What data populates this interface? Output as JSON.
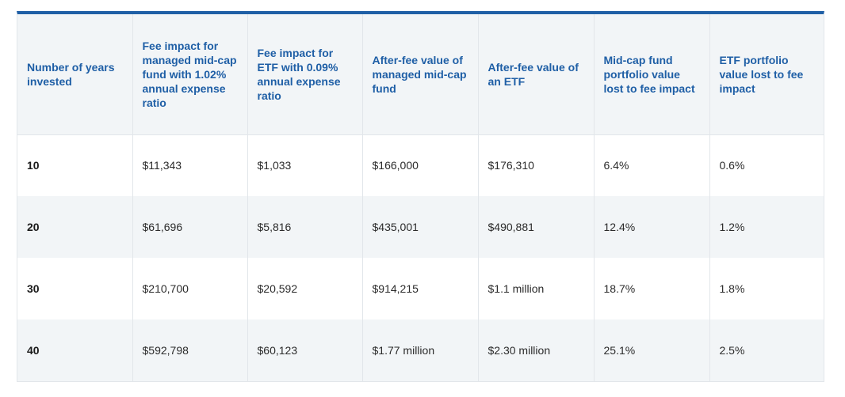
{
  "table": {
    "headers": [
      "Number of years invested",
      "Fee impact for managed mid-cap fund with 1.02% annual expense ratio",
      "Fee impact for ETF with 0.09% annual expense ratio",
      "After-fee value of managed mid-cap fund",
      "After-fee value of an ETF",
      "Mid-cap fund portfolio value lost to fee impact",
      "ETF portfolio value lost to fee impact"
    ],
    "rows": [
      [
        "10",
        "$11,343",
        "$1,033",
        "$166,000",
        "$176,310",
        "6.4%",
        "0.6%"
      ],
      [
        "20",
        "$61,696",
        "$5,816",
        "$435,001",
        "$490,881",
        "12.4%",
        "1.2%"
      ],
      [
        "30",
        "$210,700",
        "$20,592",
        "$914,215",
        "$1.1 million",
        "18.7%",
        "1.8%"
      ],
      [
        "40",
        "$592,798",
        "$60,123",
        "$1.77 million",
        "$2.30 million",
        "25.1%",
        "2.5%"
      ]
    ]
  },
  "colors": {
    "accent": "#1f5fa6",
    "header_bg": "#f2f5f7",
    "stripe_bg": "#f2f5f7",
    "border": "#e2e6ea",
    "text": "#2b2b2b"
  }
}
